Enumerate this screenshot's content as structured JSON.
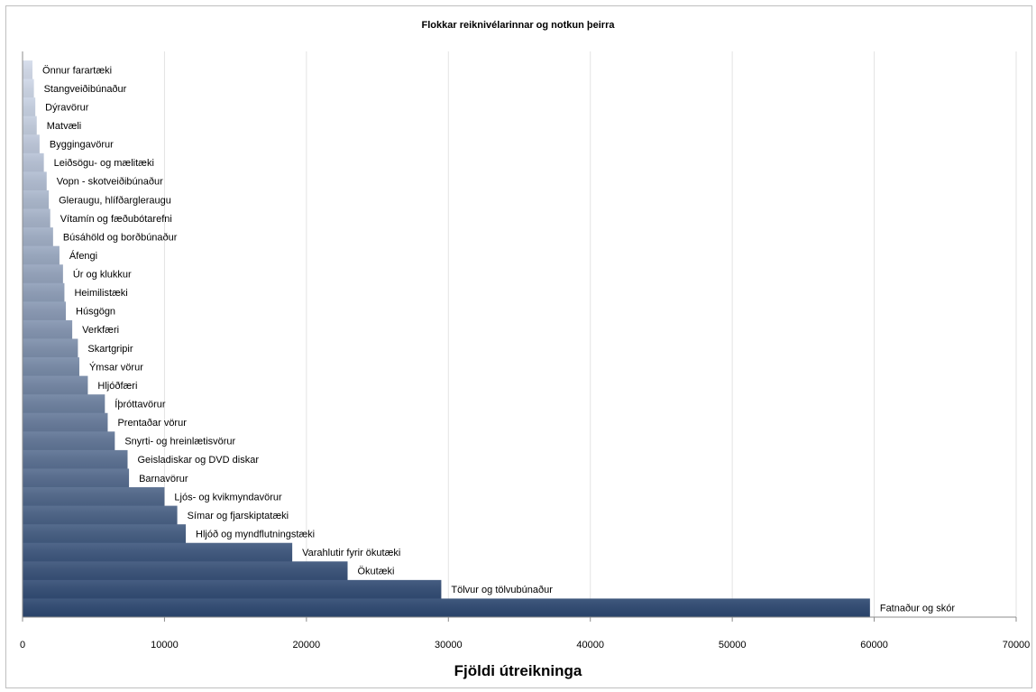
{
  "chart_data": {
    "type": "bar",
    "orientation": "horizontal",
    "title": "Flokkar reiknivélarinnar  og notkun þeirra",
    "xlabel": "Fjöldi útreikninga",
    "ylabel": "",
    "xlim": [
      0,
      70000
    ],
    "x_ticks": [
      "0",
      "10000",
      "20000",
      "30000",
      "40000",
      "50000",
      "60000",
      "70000"
    ],
    "grid": "vertical",
    "legend": "none",
    "colors": {
      "light": "#d4dceb",
      "dark": "#2c4770"
    },
    "categories": [
      "Önnur farartæki",
      "Stangveiðibúnaður",
      "Dýravörur",
      "Matvæli",
      "Byggingavörur",
      "Leiðsögu- og mælitæki",
      "Vopn - skotveiðibúnaður",
      "Gleraugu, hlífðargleraugu",
      "Vítamín og fæðubótarefni",
      "Búsáhöld og borðbúnaður",
      "Áfengi",
      "Úr og klukkur",
      "Heimilistæki",
      "Húsgögn",
      "Verkfæri",
      "Skartgripir",
      "Ýmsar vörur",
      "Hljóðfæri",
      "Íþróttavörur",
      "Prentaðar vörur",
      "Snyrti- og hreinlætisvörur",
      "Geisladiskar og DVD diskar",
      "Barnavörur",
      "Ljós- og kvikmyndavörur",
      "Símar og fjarskiptatæki",
      "Hljóð og myndflutningstæki",
      "Varahlutir fyrir ökutæki",
      "Ökutæki",
      "Tölvur og tölvubúnaður",
      "Fatnaður og skór"
    ],
    "values": [
      700,
      800,
      900,
      1000,
      1200,
      1500,
      1700,
      1850,
      1950,
      2150,
      2600,
      2850,
      2950,
      3050,
      3500,
      3900,
      4000,
      4600,
      5800,
      6000,
      6500,
      7400,
      7500,
      10000,
      10900,
      11500,
      19000,
      22900,
      29500,
      59700
    ]
  }
}
